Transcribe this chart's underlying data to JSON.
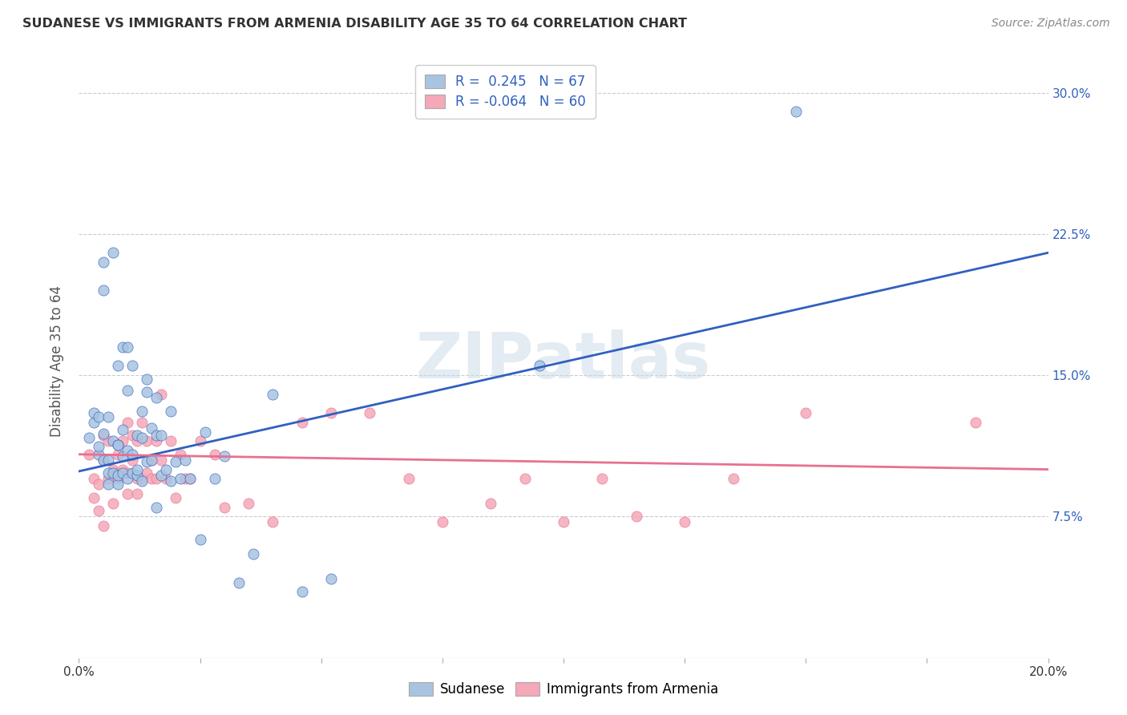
{
  "title": "SUDANESE VS IMMIGRANTS FROM ARMENIA DISABILITY AGE 35 TO 64 CORRELATION CHART",
  "source": "Source: ZipAtlas.com",
  "ylabel": "Disability Age 35 to 64",
  "xlim": [
    0.0,
    0.2
  ],
  "ylim": [
    0.0,
    0.315
  ],
  "xticks": [
    0.0,
    0.025,
    0.05,
    0.075,
    0.1,
    0.125,
    0.15,
    0.175,
    0.2
  ],
  "yticks": [
    0.075,
    0.15,
    0.225,
    0.3
  ],
  "ytick_labels": [
    "7.5%",
    "15.0%",
    "22.5%",
    "30.0%"
  ],
  "blue_R": 0.245,
  "blue_N": 67,
  "pink_R": -0.064,
  "pink_N": 60,
  "blue_color": "#a8c4e0",
  "pink_color": "#f4a8b8",
  "blue_line_color": "#3060c0",
  "pink_line_color": "#e87090",
  "watermark": "ZIPatlas",
  "legend_label_blue": "Sudanese",
  "legend_label_pink": "Immigrants from Armenia",
  "blue_scatter_x": [
    0.002,
    0.003,
    0.003,
    0.004,
    0.004,
    0.004,
    0.005,
    0.005,
    0.005,
    0.005,
    0.006,
    0.006,
    0.006,
    0.006,
    0.007,
    0.007,
    0.007,
    0.008,
    0.008,
    0.008,
    0.008,
    0.008,
    0.009,
    0.009,
    0.009,
    0.009,
    0.01,
    0.01,
    0.01,
    0.01,
    0.011,
    0.011,
    0.011,
    0.012,
    0.012,
    0.012,
    0.013,
    0.013,
    0.013,
    0.014,
    0.014,
    0.014,
    0.015,
    0.015,
    0.016,
    0.016,
    0.016,
    0.017,
    0.017,
    0.018,
    0.019,
    0.019,
    0.02,
    0.021,
    0.022,
    0.023,
    0.025,
    0.026,
    0.028,
    0.03,
    0.033,
    0.036,
    0.04,
    0.046,
    0.052,
    0.095,
    0.148
  ],
  "blue_scatter_y": [
    0.117,
    0.125,
    0.13,
    0.108,
    0.112,
    0.128,
    0.105,
    0.119,
    0.195,
    0.21,
    0.092,
    0.098,
    0.105,
    0.128,
    0.098,
    0.115,
    0.215,
    0.092,
    0.113,
    0.097,
    0.113,
    0.155,
    0.098,
    0.107,
    0.121,
    0.165,
    0.095,
    0.11,
    0.142,
    0.165,
    0.098,
    0.108,
    0.155,
    0.097,
    0.118,
    0.1,
    0.117,
    0.094,
    0.131,
    0.104,
    0.141,
    0.148,
    0.105,
    0.122,
    0.118,
    0.138,
    0.08,
    0.097,
    0.118,
    0.1,
    0.094,
    0.131,
    0.104,
    0.095,
    0.105,
    0.095,
    0.063,
    0.12,
    0.095,
    0.107,
    0.04,
    0.055,
    0.14,
    0.035,
    0.042,
    0.155,
    0.29
  ],
  "pink_scatter_x": [
    0.002,
    0.003,
    0.003,
    0.004,
    0.004,
    0.005,
    0.005,
    0.005,
    0.006,
    0.006,
    0.007,
    0.007,
    0.008,
    0.008,
    0.008,
    0.009,
    0.009,
    0.01,
    0.01,
    0.01,
    0.011,
    0.011,
    0.012,
    0.012,
    0.012,
    0.013,
    0.013,
    0.014,
    0.014,
    0.015,
    0.015,
    0.016,
    0.016,
    0.017,
    0.017,
    0.018,
    0.019,
    0.02,
    0.021,
    0.022,
    0.023,
    0.025,
    0.028,
    0.03,
    0.035,
    0.04,
    0.046,
    0.052,
    0.06,
    0.068,
    0.075,
    0.085,
    0.092,
    0.1,
    0.108,
    0.115,
    0.125,
    0.135,
    0.15,
    0.185
  ],
  "pink_scatter_y": [
    0.108,
    0.095,
    0.085,
    0.092,
    0.078,
    0.105,
    0.118,
    0.07,
    0.095,
    0.115,
    0.1,
    0.082,
    0.098,
    0.108,
    0.095,
    0.1,
    0.115,
    0.087,
    0.125,
    0.098,
    0.105,
    0.118,
    0.095,
    0.115,
    0.087,
    0.095,
    0.125,
    0.098,
    0.115,
    0.105,
    0.095,
    0.115,
    0.095,
    0.14,
    0.105,
    0.095,
    0.115,
    0.085,
    0.108,
    0.095,
    0.095,
    0.115,
    0.108,
    0.08,
    0.082,
    0.072,
    0.125,
    0.13,
    0.13,
    0.095,
    0.072,
    0.082,
    0.095,
    0.072,
    0.095,
    0.075,
    0.072,
    0.095,
    0.13,
    0.125
  ],
  "blue_line_x0": 0.0,
  "blue_line_y0": 0.099,
  "blue_line_x1": 0.2,
  "blue_line_y1": 0.215,
  "pink_line_x0": 0.0,
  "pink_line_y0": 0.108,
  "pink_line_x1": 0.2,
  "pink_line_y1": 0.1
}
